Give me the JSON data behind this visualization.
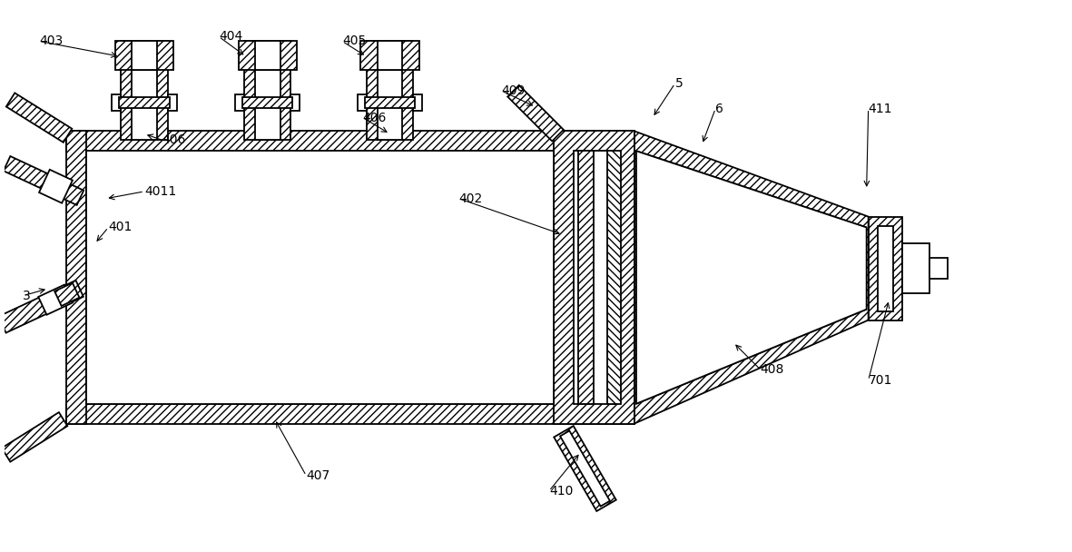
{
  "bg_color": "#ffffff",
  "line_color": "#000000",
  "figsize": [
    11.81,
    6.08
  ],
  "dpi": 100,
  "lw": 1.3,
  "hatch_lw": 0.5
}
